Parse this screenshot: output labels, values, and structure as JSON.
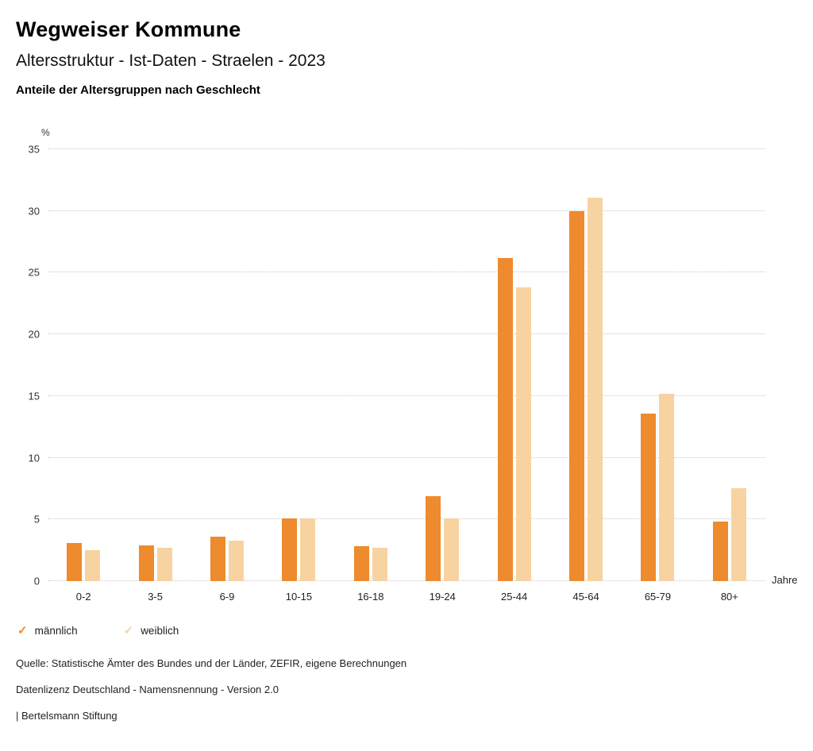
{
  "header": {
    "title": "Wegweiser Kommune",
    "subtitle": "Altersstruktur - Ist-Daten - Straelen - 2023",
    "description": "Anteile der Altersgruppen nach Geschlecht"
  },
  "chart_data": {
    "type": "bar",
    "title": "Anteile der Altersgruppen nach Geschlecht",
    "categories": [
      "0-2",
      "3-5",
      "6-9",
      "10-15",
      "16-18",
      "19-24",
      "25-44",
      "45-64",
      "65-79",
      "80+"
    ],
    "series": [
      {
        "name": "männlich",
        "color": "#ED8B2E",
        "values": [
          3.1,
          2.9,
          3.6,
          5.1,
          2.8,
          6.9,
          26.2,
          30.0,
          13.6,
          4.8
        ]
      },
      {
        "name": "weiblich",
        "color": "#F7D3A1",
        "values": [
          2.5,
          2.7,
          3.3,
          5.1,
          2.7,
          5.1,
          23.8,
          31.1,
          15.2,
          7.5
        ]
      }
    ],
    "ylabel": "%",
    "xlabel": "Jahre",
    "ylim": [
      0,
      35
    ],
    "yticks": [
      0,
      5,
      10,
      15,
      20,
      25,
      30,
      35
    ],
    "grid": "horizontal dotted",
    "legend_position": "bottom-left"
  },
  "legend": {
    "marker": "✓",
    "items": [
      {
        "label": "männlich",
        "color": "#ED8B2E"
      },
      {
        "label": "weiblich",
        "color": "#F7D3A1"
      }
    ]
  },
  "footer": {
    "source": "Quelle: Statistische Ämter des Bundes und der Länder, ZEFIR, eigene Berechnungen",
    "license": "Datenlizenz Deutschland - Namensnennung - Version 2.0",
    "attribution": "| Bertelsmann Stiftung"
  }
}
